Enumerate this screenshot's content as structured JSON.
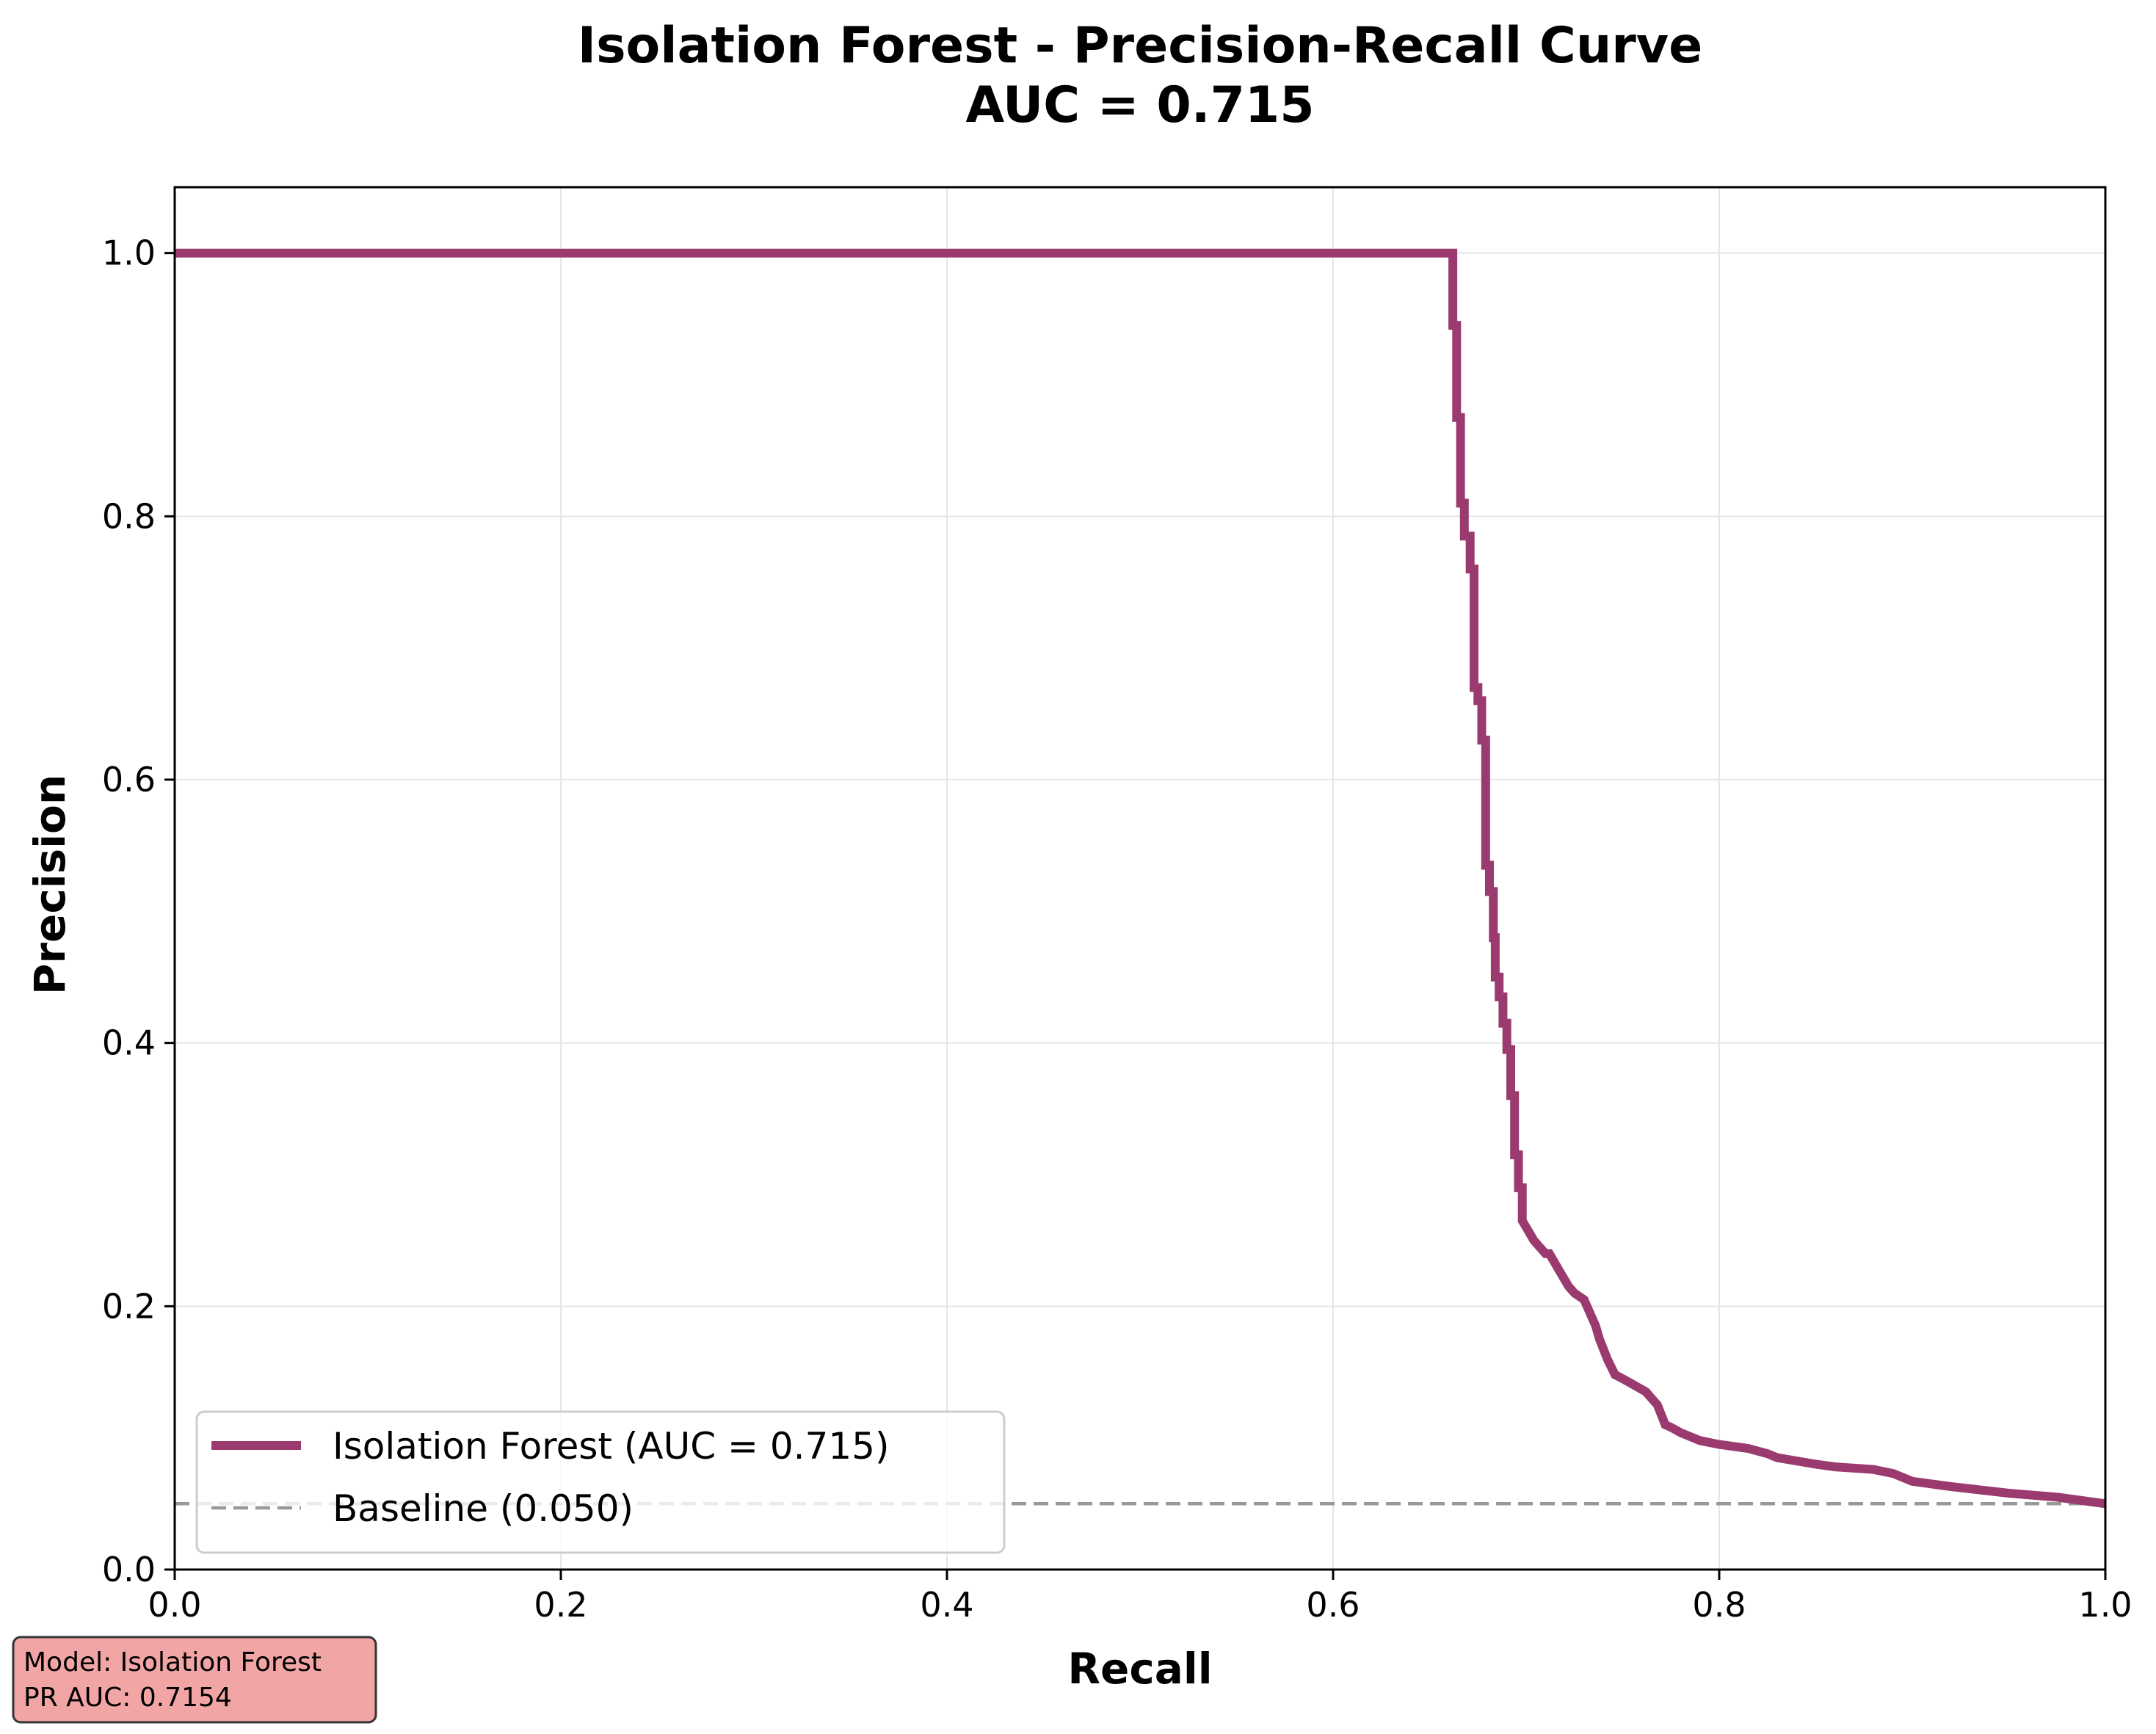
{
  "chart_data": {
    "type": "line",
    "title": "Isolation Forest - Precision-Recall Curve",
    "subtitle": "AUC = 0.715",
    "xlabel": "Recall",
    "ylabel": "Precision",
    "xlim": [
      0.0,
      1.0
    ],
    "ylim": [
      0.0,
      1.05
    ],
    "xticks": [
      "0.0",
      "0.2",
      "0.4",
      "0.6",
      "0.8",
      "1.0"
    ],
    "yticks": [
      "0.0",
      "0.2",
      "0.4",
      "0.6",
      "0.8",
      "1.0"
    ],
    "grid": true,
    "legend_position": "lower-left",
    "series": [
      {
        "name": "Isolation Forest (AUC = 0.715)",
        "color": "#9b3a6e",
        "style": "solid",
        "x": [
          0.0,
          0.662,
          0.662,
          0.664,
          0.664,
          0.666,
          0.666,
          0.668,
          0.668,
          0.671,
          0.671,
          0.673,
          0.673,
          0.675,
          0.675,
          0.677,
          0.677,
          0.679,
          0.679,
          0.681,
          0.681,
          0.683,
          0.683,
          0.684,
          0.684,
          0.686,
          0.686,
          0.688,
          0.688,
          0.69,
          0.69,
          0.692,
          0.692,
          0.694,
          0.694,
          0.696,
          0.696,
          0.698,
          0.698,
          0.7,
          0.704,
          0.71,
          0.712,
          0.718,
          0.722,
          0.725,
          0.73,
          0.736,
          0.738,
          0.742,
          0.746,
          0.75,
          0.756,
          0.762,
          0.768,
          0.772,
          0.775,
          0.78,
          0.79,
          0.8,
          0.815,
          0.825,
          0.83,
          0.85,
          0.86,
          0.88,
          0.89,
          0.9,
          0.92,
          0.95,
          0.975,
          1.0
        ],
        "y": [
          1.0,
          1.0,
          0.945,
          0.945,
          0.875,
          0.875,
          0.81,
          0.81,
          0.785,
          0.785,
          0.76,
          0.76,
          0.67,
          0.67,
          0.66,
          0.66,
          0.63,
          0.63,
          0.535,
          0.535,
          0.515,
          0.515,
          0.48,
          0.48,
          0.45,
          0.45,
          0.435,
          0.435,
          0.415,
          0.415,
          0.395,
          0.395,
          0.36,
          0.36,
          0.315,
          0.315,
          0.29,
          0.29,
          0.265,
          0.26,
          0.25,
          0.24,
          0.24,
          0.225,
          0.215,
          0.21,
          0.205,
          0.185,
          0.175,
          0.16,
          0.148,
          0.145,
          0.14,
          0.135,
          0.125,
          0.11,
          0.108,
          0.104,
          0.098,
          0.095,
          0.092,
          0.088,
          0.085,
          0.08,
          0.078,
          0.076,
          0.073,
          0.067,
          0.063,
          0.058,
          0.055,
          0.05
        ]
      },
      {
        "name": "Baseline (0.050)",
        "color": "#999999",
        "style": "dashed",
        "x": [
          0.0,
          1.0
        ],
        "y": [
          0.05,
          0.05
        ]
      }
    ]
  },
  "info_box": {
    "line1": "Model: Isolation Forest",
    "line2": "PR AUC: 0.7154",
    "background": "#f2a5a5",
    "border": "#333333"
  }
}
